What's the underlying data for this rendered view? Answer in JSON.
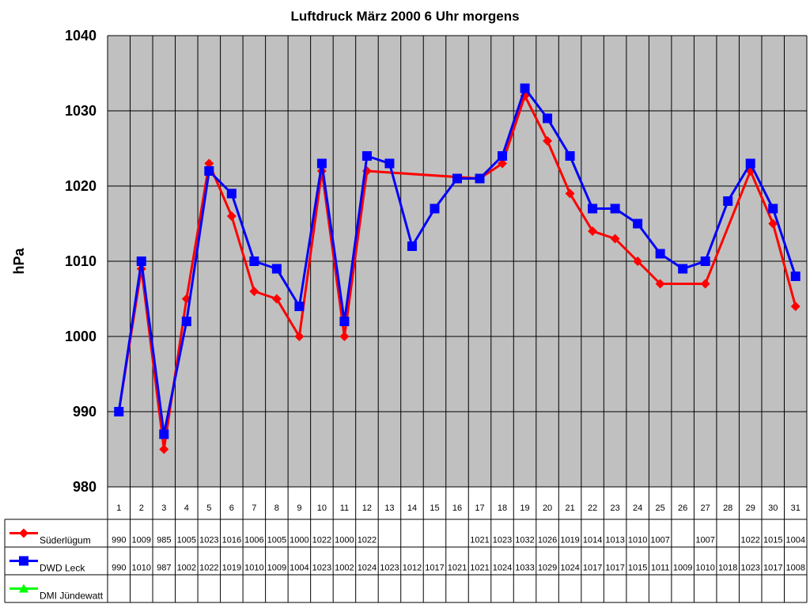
{
  "chart_data": {
    "type": "line",
    "title": "Luftdruck März 2000 6 Uhr morgens",
    "ylabel": "hPa",
    "xlabel": "",
    "ylim": [
      980,
      1040
    ],
    "yticks": [
      "980",
      "990",
      "1000",
      "1010",
      "1020",
      "1030",
      "1040"
    ],
    "grid": true,
    "legend_placement": "data table left",
    "background_color": "#c0c0c0",
    "categories": [
      "1",
      "2",
      "3",
      "4",
      "5",
      "6",
      "7",
      "8",
      "9",
      "10",
      "11",
      "12",
      "13",
      "14",
      "15",
      "16",
      "17",
      "18",
      "19",
      "20",
      "21",
      "22",
      "23",
      "24",
      "25",
      "26",
      "27",
      "28",
      "29",
      "30",
      "31"
    ],
    "series": [
      {
        "name": "Süderlügum",
        "color": "#ff0000",
        "marker": "diamond",
        "values": [
          990,
          1009,
          985,
          1005,
          1023,
          1016,
          1006,
          1005,
          1000,
          1022,
          1000,
          1022,
          null,
          null,
          null,
          null,
          1021,
          1023,
          1032,
          1026,
          1019,
          1014,
          1013,
          1010,
          1007,
          null,
          1007,
          null,
          1022,
          1015,
          1004
        ],
        "labels": [
          "990",
          "1009",
          "985",
          "1005",
          "1023",
          "1016",
          "1006",
          "1005",
          "1000",
          "1022",
          "1000",
          "1022",
          "",
          "",
          "",
          "",
          "1021",
          "1023",
          "1032",
          "1026",
          "1019",
          "1014",
          "1013",
          "1010",
          "1007",
          "",
          "1007",
          "",
          "1022",
          "1015",
          "1004"
        ]
      },
      {
        "name": "DWD Leck",
        "color": "#0000ff",
        "marker": "square",
        "values": [
          990,
          1010,
          987,
          1002,
          1022,
          1019,
          1010,
          1009,
          1004,
          1023,
          1002,
          1024,
          1023,
          1012,
          1017,
          1021,
          1021,
          1024,
          1033,
          1029,
          1024,
          1017,
          1017,
          1015,
          1011,
          1009,
          1010,
          1018,
          1023,
          1017,
          1008
        ],
        "labels": [
          "990",
          "1010",
          "987",
          "1002",
          "1022",
          "1019",
          "1010",
          "1009",
          "1004",
          "1023",
          "1002",
          "1024",
          "1023",
          "1012",
          "1017",
          "1021",
          "1021",
          "1024",
          "1033",
          "1029",
          "1024",
          "1017",
          "1017",
          "1015",
          "1011",
          "1009",
          "1010",
          "1018",
          "1023",
          "1017",
          "1008"
        ]
      },
      {
        "name": "DMI Jündewatt",
        "color": "#00ff00",
        "marker": "triangle",
        "values": [
          null,
          null,
          null,
          null,
          null,
          null,
          null,
          null,
          null,
          null,
          null,
          null,
          null,
          null,
          null,
          null,
          null,
          null,
          null,
          null,
          null,
          null,
          null,
          null,
          null,
          null,
          null,
          null,
          null,
          null,
          null
        ],
        "labels": [
          "",
          "",
          "",
          "",
          "",
          "",
          "",
          "",
          "",
          "",
          "",
          "",
          "",
          "",
          "",
          "",
          "",
          "",
          "",
          "",
          "",
          "",
          "",
          "",
          "",
          "",
          "",
          "",
          "",
          "",
          ""
        ]
      }
    ]
  }
}
